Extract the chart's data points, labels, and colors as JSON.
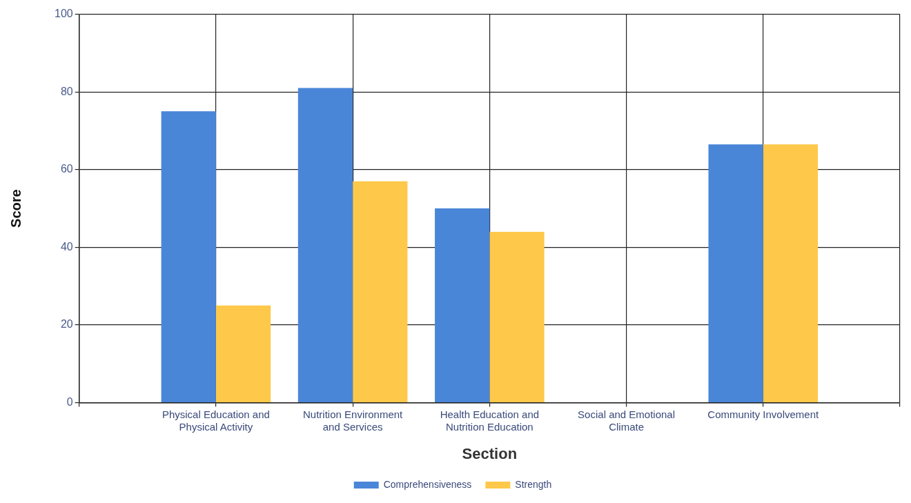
{
  "chart_data": {
    "type": "bar",
    "xlabel": "Section",
    "ylabel": "Score",
    "categories": [
      "Physical Education and Physical Activity",
      "Nutrition Environment and Services",
      "Health Education and Nutrition Education",
      "Social and Emotional Climate",
      "Community Involvement"
    ],
    "series": [
      {
        "name": "Comprehensiveness",
        "color": "#4a86d8",
        "values": [
          75,
          81,
          50,
          null,
          66.5
        ]
      },
      {
        "name": "Strength",
        "color": "#fec84a",
        "values": [
          25,
          57,
          44,
          null,
          66.5
        ]
      }
    ],
    "ylim": [
      0,
      100
    ],
    "yticks": [
      0,
      20,
      40,
      60,
      80,
      100
    ],
    "grid": true,
    "legend": "bottom"
  }
}
